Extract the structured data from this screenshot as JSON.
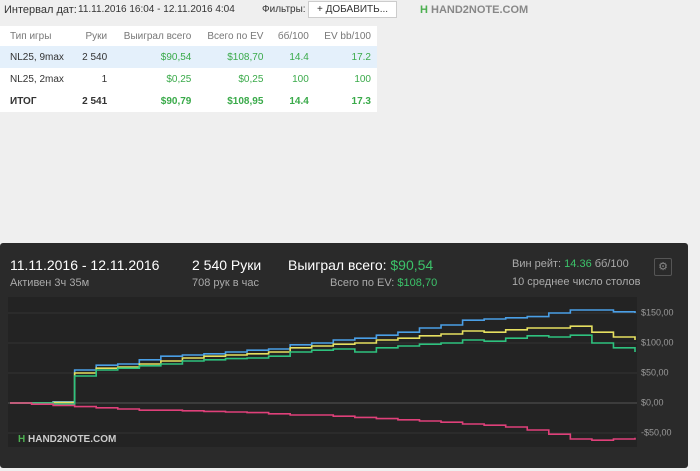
{
  "header": {
    "interval_label": "Интервал дат:",
    "interval": "11.11.2016 16:04 - 12.11.2016 4:04",
    "filters_label": "Фильтры:",
    "add_button": "ДОБАВИТЬ...",
    "logo": "HAND2NOTE.COM"
  },
  "table": {
    "columns": [
      "Тип игры",
      "Руки",
      "Выиграл всего",
      "Всего по EV",
      "бб/100",
      "EV bb/100"
    ],
    "rows": [
      [
        "NL25, 9max",
        "2 540",
        "$90,54",
        "$108,70",
        "14.4",
        "17.2"
      ],
      [
        "NL25, 2max",
        "1",
        "$0,25",
        "$0,25",
        "100",
        "100"
      ]
    ],
    "total": [
      "ИТОГ",
      "2 541",
      "$90,79",
      "$108,95",
      "14.4",
      "17.3"
    ]
  },
  "summary": {
    "dates": "11.11.2016 - 12.11.2016",
    "active": "Активен 3ч 35м",
    "hands": "2 540 Руки",
    "hands_per_hour": "708 рук в час",
    "won_label": "Выиграл всего:",
    "won": "$90,54",
    "ev_label": "Всего по EV:",
    "ev": "$108,70",
    "winrate_label": "Вин рейт:",
    "winrate": "14.36",
    "winrate_unit": "бб/100",
    "tables": "10 среднее число столов",
    "watermark": "HAND2NOTE.COM"
  },
  "chart_data": {
    "type": "line",
    "ylim": [
      -70,
      170
    ],
    "yticks": [
      {
        "value": 150,
        "label": "$150,00"
      },
      {
        "value": 100,
        "label": "$100,00"
      },
      {
        "value": 50,
        "label": "$50,00"
      },
      {
        "value": 0,
        "label": "$0,00"
      },
      {
        "value": -50,
        "label": "-$50,00"
      }
    ],
    "grid": true,
    "series": [
      {
        "color": "#4a9fe6",
        "values": [
          0,
          0,
          2,
          55,
          63,
          65,
          72,
          78,
          80,
          82,
          85,
          88,
          90,
          97,
          100,
          105,
          108,
          113,
          118,
          125,
          130,
          138,
          140,
          142,
          144,
          150,
          155,
          155,
          152,
          150
        ]
      },
      {
        "color": "#e6e060",
        "values": [
          0,
          0,
          1,
          50,
          58,
          60,
          65,
          70,
          75,
          78,
          80,
          82,
          85,
          92,
          95,
          98,
          100,
          105,
          108,
          112,
          115,
          120,
          118,
          122,
          125,
          125,
          128,
          118,
          110,
          105
        ]
      },
      {
        "color": "#2ec27e",
        "values": [
          0,
          0,
          -2,
          45,
          55,
          58,
          62,
          65,
          70,
          72,
          74,
          75,
          78,
          85,
          88,
          90,
          85,
          92,
          95,
          98,
          100,
          105,
          103,
          108,
          112,
          110,
          113,
          100,
          92,
          85
        ]
      },
      {
        "color": "#e0407a",
        "values": [
          0,
          -2,
          -4,
          -6,
          -8,
          -10,
          -12,
          -12,
          -13,
          -14,
          -15,
          -16,
          -18,
          -20,
          -20,
          -22,
          -24,
          -26,
          -28,
          -30,
          -32,
          -35,
          -37,
          -40,
          -45,
          -52,
          -60,
          -62,
          -60,
          -58
        ]
      }
    ]
  }
}
